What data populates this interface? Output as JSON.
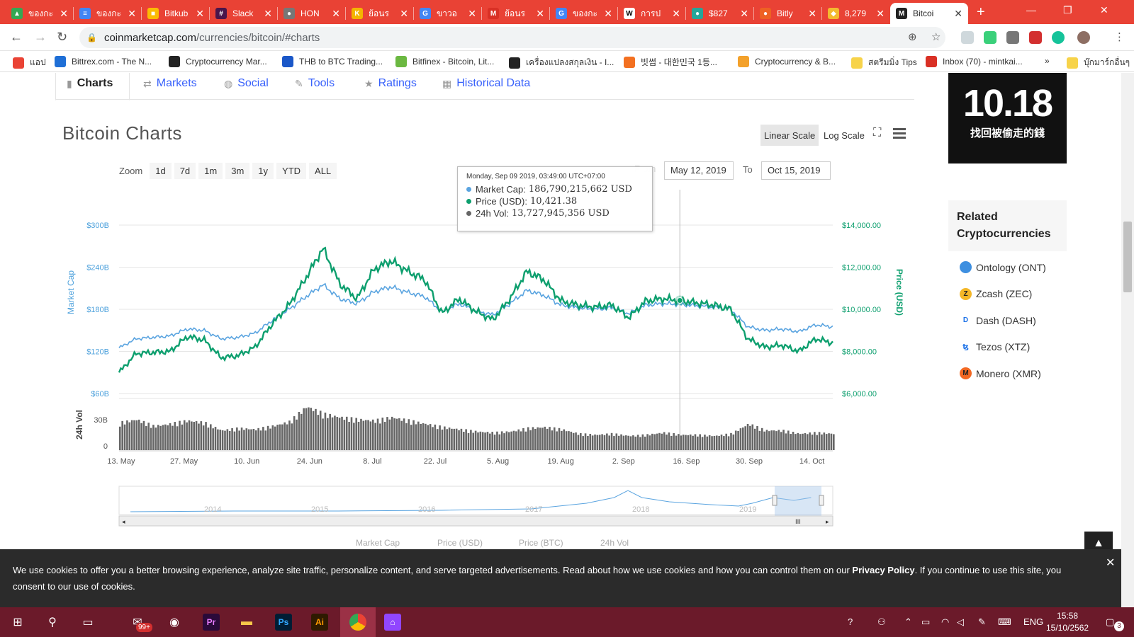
{
  "browser": {
    "tabs": [
      {
        "title": "ของกะ",
        "color": "#34a853",
        "glyph": "▲"
      },
      {
        "title": "ของกะ",
        "color": "#4285f4",
        "glyph": "≡"
      },
      {
        "title": "Bitkub",
        "color": "#fbbc04",
        "glyph": "■"
      },
      {
        "title": "Slack",
        "color": "#4a154b",
        "glyph": "#"
      },
      {
        "title": "HON",
        "color": "#777777",
        "glyph": "●"
      },
      {
        "title": "ย้อนร",
        "color": "#f4b400",
        "glyph": "K"
      },
      {
        "title": "ขาวอ",
        "color": "#4285f4",
        "glyph": "G"
      },
      {
        "title": "ย้อนร",
        "color": "#d93025",
        "glyph": "M"
      },
      {
        "title": "ของกะ",
        "color": "#4285f4",
        "glyph": "G"
      },
      {
        "title": "การป",
        "color": "#ffffff",
        "glyph": "W"
      },
      {
        "title": "$827",
        "color": "#26a69a",
        "glyph": "●"
      },
      {
        "title": "Bitly",
        "color": "#ee6123",
        "glyph": "●"
      },
      {
        "title": "8,279",
        "color": "#f3ba2f",
        "glyph": "◆"
      },
      {
        "title": "Bitcoi",
        "color": "#222222",
        "glyph": "M",
        "active": true
      }
    ],
    "new_tab": "+",
    "url_host": "coinmarketcap.com",
    "url_path": "/currencies/bitcoin/#charts"
  },
  "bookmarks": [
    {
      "label": "แอป",
      "color": "#ea4335"
    },
    {
      "label": "Bittrex.com - The N...",
      "color": "#1f6fd6"
    },
    {
      "label": "Cryptocurrency Mar...",
      "color": "#222222"
    },
    {
      "label": "THB to BTC Trading...",
      "color": "#1a57c8"
    },
    {
      "label": "Bitfinex - Bitcoin, Lit...",
      "color": "#6bb841"
    },
    {
      "label": "เครื่องแปลงสกุลเงิน - I...",
      "color": "#222222"
    },
    {
      "label": "빗썸 - 대한민국 1등...",
      "color": "#f37021"
    },
    {
      "label": "Cryptocurrency & B...",
      "color": "#f3a12b"
    },
    {
      "label": "สตรีมมิ่ง Tips",
      "color": "#f7d34a"
    },
    {
      "label": "Inbox (70) - mintkai...",
      "color": "#d93025"
    },
    {
      "label": "»",
      "color": ""
    },
    {
      "label": "บุ๊กมาร์กอื่นๆ",
      "color": "#f7d34a"
    }
  ],
  "subtabs": [
    "Charts",
    "Markets",
    "Social",
    "Tools",
    "Ratings",
    "Historical Data"
  ],
  "chart_header": {
    "title": "Bitcoin Charts",
    "linear_scale": "Linear Scale",
    "log_scale": "Log Scale"
  },
  "zoom": {
    "label": "Zoom",
    "buttons": [
      "1d",
      "7d",
      "1m",
      "3m",
      "1y",
      "YTD",
      "ALL"
    ],
    "from_label": "From",
    "to_label": "To",
    "from_date": "May 12, 2019",
    "to_date": "Oct 15, 2019"
  },
  "tooltip": {
    "date": "Monday, Sep 09 2019, 03:49:00 UTC+07:00",
    "market_cap_label": "Market Cap:",
    "market_cap_value": "186,790,215,662 USD",
    "price_label": "Price (USD):",
    "price_value": "10,421.38",
    "vol_label": "24h Vol:",
    "vol_value": "13,727,945,356 USD"
  },
  "chart_data": {
    "type": "line",
    "x": [
      "May 12",
      "May 16",
      "May 20",
      "May 24",
      "May 28",
      "Jun 01",
      "Jun 05",
      "Jun 09",
      "Jun 13",
      "Jun 17",
      "Jun 21",
      "Jun 24",
      "Jun 26",
      "Jun 28",
      "Jul 01",
      "Jul 04",
      "Jul 08",
      "Jul 10",
      "Jul 13",
      "Jul 17",
      "Jul 21",
      "Jul 25",
      "Jul 29",
      "Aug 02",
      "Aug 06",
      "Aug 10",
      "Aug 14",
      "Aug 18",
      "Aug 22",
      "Aug 26",
      "Aug 30",
      "Sep 03",
      "Sep 06",
      "Sep 09",
      "Sep 13",
      "Sep 17",
      "Sep 21",
      "Sep 24",
      "Sep 28",
      "Oct 02",
      "Oct 06",
      "Oct 10",
      "Oct 15"
    ],
    "series": [
      {
        "name": "Price (USD)",
        "axis": "right",
        "color": "#0d9f6e",
        "values": [
          7000,
          7900,
          7950,
          8000,
          8700,
          8550,
          7700,
          7800,
          8200,
          9300,
          10200,
          11500,
          12900,
          11200,
          10500,
          11900,
          12300,
          11800,
          11400,
          9800,
          10500,
          9900,
          9500,
          10500,
          11800,
          11400,
          10400,
          10200,
          10100,
          10200,
          9600,
          10400,
          10500,
          10421,
          10300,
          10200,
          10000,
          8600,
          8200,
          8300,
          8000,
          8600,
          8400
        ]
      },
      {
        "name": "Market Cap",
        "axis": "left",
        "color": "#5aa4e0",
        "values": [
          125,
          138,
          140,
          142,
          152,
          150,
          138,
          140,
          146,
          164,
          180,
          198,
          215,
          195,
          188,
          205,
          212,
          204,
          198,
          176,
          188,
          178,
          172,
          188,
          207,
          200,
          186,
          182,
          180,
          182,
          174,
          186,
          188,
          187,
          185,
          183,
          180,
          155,
          150,
          152,
          148,
          158,
          155
        ]
      },
      {
        "name": "24h Vol",
        "axis": "vol",
        "color": "#666666",
        "values": [
          25,
          28,
          22,
          24,
          27,
          25,
          18,
          20,
          19,
          22,
          26,
          40,
          33,
          30,
          28,
          27,
          30,
          27,
          24,
          21,
          19,
          17,
          16,
          17,
          20,
          21,
          19,
          15,
          14,
          15,
          13,
          14,
          16,
          14,
          14,
          13,
          15,
          24,
          18,
          18,
          15,
          16,
          15
        ]
      }
    ],
    "left_axis": {
      "label": "Market Cap",
      "ticks": [
        "$300B",
        "$240B",
        "$180B",
        "$120B",
        "$60B"
      ]
    },
    "right_axis": {
      "label": "Price (USD)",
      "ticks": [
        "$14,000.00",
        "$12,000.00",
        "$10,000.00",
        "$8,000.00",
        "$6,000.00"
      ],
      "range": [
        6000,
        14000
      ]
    },
    "vol_axis": {
      "label": "24h Vol",
      "ticks": [
        "30B",
        "0"
      ]
    },
    "x_ticks": [
      "13. May",
      "27. May",
      "10. Jun",
      "24. Jun",
      "8. Jul",
      "22. Jul",
      "5. Aug",
      "19. Aug",
      "2. Sep",
      "16. Sep",
      "30. Sep",
      "14. Oct"
    ],
    "navigator_years": [
      "2014",
      "2015",
      "2016",
      "2017",
      "2018",
      "2019"
    ],
    "legend": [
      "Market Cap",
      "Price (USD)",
      "Price (BTC)",
      "24h Vol"
    ]
  },
  "ad": {
    "big": "10.18",
    "sub": "找回被偷走的錢"
  },
  "related": {
    "title": "Related Cryptocurrencies",
    "items": [
      {
        "label": "Ontology (ONT)",
        "color": "#3d8fe0",
        "glyph": ""
      },
      {
        "label": "Zcash (ZEC)",
        "color": "#f4b728",
        "glyph": "Z"
      },
      {
        "label": "Dash (DASH)",
        "color": "#ffffff",
        "glyph": "D"
      },
      {
        "label": "Tezos (XTZ)",
        "color": "#ffffff",
        "glyph": "ꜩ"
      },
      {
        "label": "Monero (XMR)",
        "color": "#f26822",
        "glyph": "M"
      }
    ]
  },
  "cookie": {
    "text_before": "We use cookies to offer you a better browsing experience, analyze site traffic, personalize content, and serve targeted advertisements. Read about how we use cookies and how you can control them on our ",
    "link": "Privacy Policy",
    "text_after": ". If you continue to use this site, you consent to our use of cookies."
  },
  "taskbar": {
    "badge": "99+",
    "lang": "ENG",
    "time": "15:58",
    "date": "15/10/2562",
    "notif_count": "3"
  }
}
